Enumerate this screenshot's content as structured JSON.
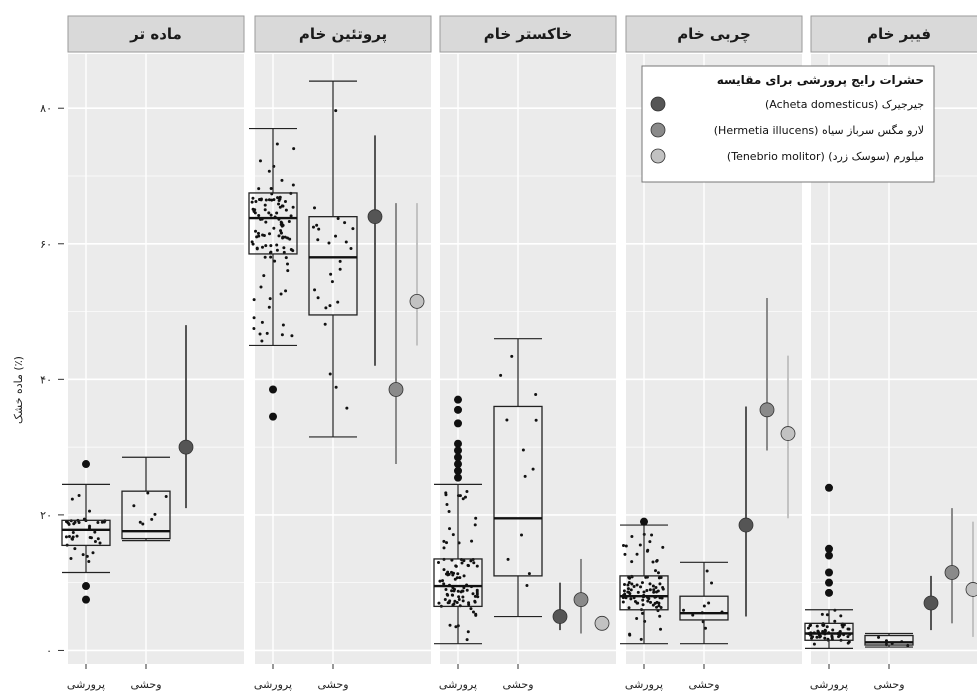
{
  "chart_data": {
    "type": "box",
    "ylabel": "ماده خشک (٪)",
    "ylim": [
      -2,
      88
    ],
    "y_ticks": [
      0,
      20,
      40,
      60,
      80
    ],
    "y_tick_labels": [
      "۰",
      "۲۰",
      "۴۰",
      "۶۰",
      "۸۰"
    ],
    "categories": [
      "پرورشی",
      "وحشی"
    ],
    "colors": {
      "panel_bg": "#ebebeb",
      "grid": "#ffffff",
      "strip_bg": "#d9d9d9",
      "box": "#222222",
      "acheta": "#555555",
      "hermetia": "#8a8a8a",
      "tenebrio": "#c2c2c2"
    },
    "legend": {
      "title": "حشرات رایج پرورشی برای مقایسه",
      "position": "top-right",
      "entries": [
        {
          "key": "acheta",
          "text": "(Acheta domesticus) جیرجیرک"
        },
        {
          "key": "hermetia",
          "text": "(Hermetia illucens) لارو مگس سرباز سیاه"
        },
        {
          "key": "tenebrio",
          "text": "(Tenebrio molitor) میلورم (سوسک زرد)"
        }
      ]
    },
    "panels": [
      {
        "title": "ماده تر",
        "boxes": [
          {
            "group": "پرورشی",
            "q1": 15.5,
            "median": 17.8,
            "q3": 19.2,
            "whisker_low": 11.5,
            "whisker_high": 24.5,
            "outliers": [
              27.5,
              9.5,
              7.5
            ],
            "jitter": {
              "n": 40,
              "low": 12.5,
              "high": 23.5
            }
          },
          {
            "group": "وحشی",
            "q1": 16.5,
            "median": 17.6,
            "q3": 23.5,
            "whisker_low": 16.2,
            "whisker_high": 28.5,
            "outliers": [],
            "jitter": {
              "n": 7,
              "low": 16.5,
              "high": 25
            }
          }
        ],
        "reference_points": [
          {
            "species": "acheta",
            "value": 30,
            "low": 21,
            "high": 48
          }
        ]
      },
      {
        "title": "پروتئین خام",
        "boxes": [
          {
            "group": "پرورشی",
            "q1": 58.5,
            "median": 63.8,
            "q3": 67.5,
            "whisker_low": 45,
            "whisker_high": 77,
            "outliers": [
              38.5,
              34.5
            ],
            "jitter": {
              "n": 110,
              "low": 45.5,
              "high": 76
            }
          },
          {
            "group": "وحشی",
            "q1": 49.5,
            "median": 58,
            "q3": 64,
            "whisker_low": 31.5,
            "whisker_high": 84,
            "outliers": [],
            "jitter": {
              "n": 26,
              "low": 33,
              "high": 82
            }
          }
        ],
        "reference_points": [
          {
            "species": "acheta",
            "value": 64,
            "low": 42,
            "high": 76
          },
          {
            "species": "hermetia",
            "value": 38.5,
            "low": 27.5,
            "high": 66
          },
          {
            "species": "tenebrio",
            "value": 51.5,
            "low": 45,
            "high": 66
          }
        ]
      },
      {
        "title": "خاکستر خام",
        "boxes": [
          {
            "group": "پرورشی",
            "q1": 6.5,
            "median": 9.5,
            "q3": 13.5,
            "whisker_low": 1,
            "whisker_high": 24.5,
            "outliers": [
              37,
              35.5,
              33.5,
              30.5,
              29.5,
              28.5,
              27.5,
              26.5,
              25.5
            ],
            "jitter": {
              "n": 100,
              "low": 1.5,
              "high": 24
            }
          },
          {
            "group": "وحشی",
            "q1": 11,
            "median": 19.5,
            "q3": 36,
            "whisker_low": 5,
            "whisker_high": 46,
            "outliers": [],
            "jitter": {
              "n": 12,
              "low": 5.5,
              "high": 44
            }
          }
        ],
        "reference_points": [
          {
            "species": "acheta",
            "value": 5,
            "low": 3,
            "high": 10
          },
          {
            "species": "hermetia",
            "value": 7.5,
            "low": 2.5,
            "high": 13.5
          },
          {
            "species": "tenebrio",
            "value": 4,
            "low": 3,
            "high": 5
          }
        ]
      },
      {
        "title": "چربی خام",
        "boxes": [
          {
            "group": "پرورشی",
            "q1": 6,
            "median": 8,
            "q3": 11,
            "whisker_low": 1,
            "whisker_high": 18.5,
            "outliers": [
              19
            ],
            "jitter": {
              "n": 95,
              "low": 1.5,
              "high": 18.5
            }
          },
          {
            "group": "وحشی",
            "q1": 4.5,
            "median": 5.5,
            "q3": 8,
            "whisker_low": 1,
            "whisker_high": 13,
            "outliers": [],
            "jitter": {
              "n": 10,
              "low": 2,
              "high": 12
            }
          }
        ],
        "reference_points": [
          {
            "species": "acheta",
            "value": 18.5,
            "low": 5,
            "high": 36
          },
          {
            "species": "hermetia",
            "value": 35.5,
            "low": 29.5,
            "high": 52
          },
          {
            "species": "tenebrio",
            "value": 32,
            "low": 19.5,
            "high": 43.5
          }
        ]
      },
      {
        "title": "فیبر خام",
        "boxes": [
          {
            "group": "پرورشی",
            "q1": 1.5,
            "median": 2.5,
            "q3": 4,
            "whisker_low": 0.3,
            "whisker_high": 6,
            "outliers": [
              24,
              15,
              14,
              11.5,
              10,
              8.5
            ],
            "jitter": {
              "n": 60,
              "low": 0.3,
              "high": 6
            }
          },
          {
            "group": "وحشی",
            "q1": 0.8,
            "median": 1.2,
            "q3": 2.2,
            "whisker_low": 0.5,
            "whisker_high": 2.5,
            "outliers": [],
            "jitter": {
              "n": 6,
              "low": 0.6,
              "high": 2.3
            }
          }
        ],
        "reference_points": [
          {
            "species": "acheta",
            "value": 7,
            "low": 3,
            "high": 11
          },
          {
            "species": "hermetia",
            "value": 11.5,
            "low": 4,
            "high": 21
          },
          {
            "species": "tenebrio",
            "value": 9,
            "low": 2,
            "high": 19
          }
        ]
      }
    ]
  }
}
